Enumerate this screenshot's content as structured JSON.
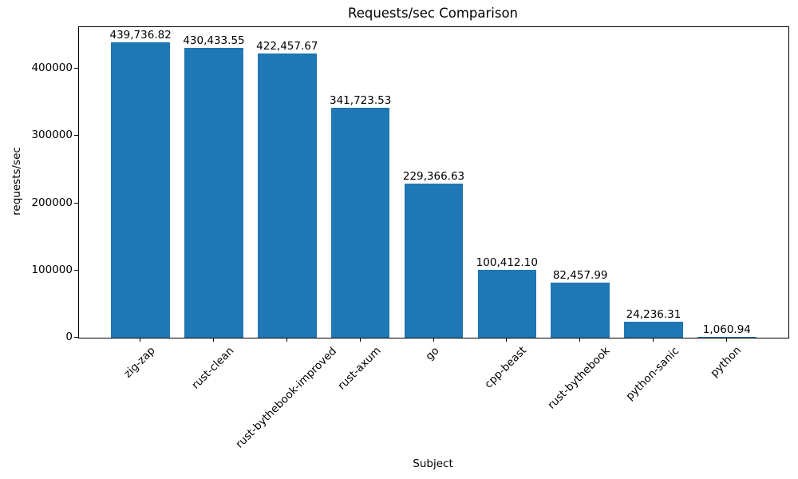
{
  "chart_data": {
    "type": "bar",
    "title": "Requests/sec Comparison",
    "xlabel": "Subject",
    "ylabel": "requests/sec",
    "categories": [
      "zig-zap",
      "rust-clean",
      "rust-bythebook-improved",
      "rust-axum",
      "go",
      "cpp-beast",
      "rust-bythebook",
      "python-sanic",
      "python"
    ],
    "values": [
      439736.82,
      430433.55,
      422457.67,
      341723.53,
      229366.63,
      100412.1,
      82457.99,
      24236.31,
      1060.94
    ],
    "value_labels": [
      "439,736.82",
      "430,433.55",
      "422,457.67",
      "341,723.53",
      "229,366.63",
      "100,412.10",
      "82,457.99",
      "24,236.31",
      "1,060.94"
    ],
    "yticks": [
      {
        "value": 0,
        "label": "0"
      },
      {
        "value": 100000,
        "label": "100000"
      },
      {
        "value": 200000,
        "label": "200000"
      },
      {
        "value": 300000,
        "label": "300000"
      },
      {
        "value": 400000,
        "label": "400000"
      }
    ],
    "ylim": [
      0,
      461723.66
    ],
    "bar_color": "#1f77b4",
    "grid": false,
    "legend": null
  }
}
